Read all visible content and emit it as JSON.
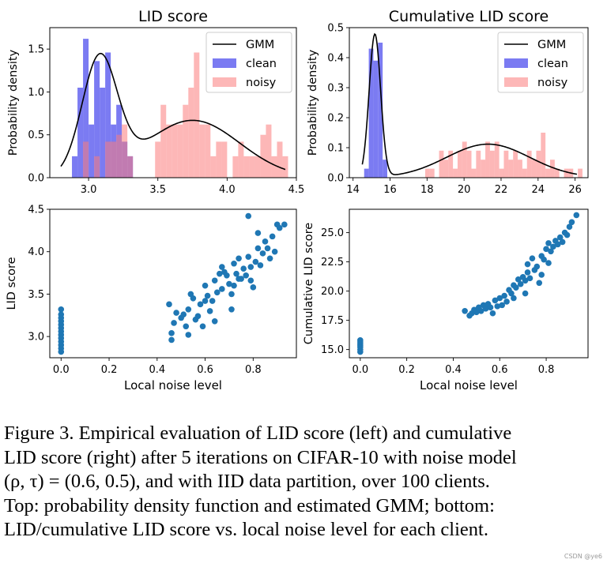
{
  "chart_data": [
    {
      "type": "histogram",
      "id": "lid-hist",
      "title": "LID score",
      "xlabel": "",
      "ylabel": "Probability density",
      "xlim": [
        2.72,
        4.5
      ],
      "ylim": [
        0,
        1.75
      ],
      "xticks": [
        3.0,
        3.5,
        4.0,
        4.5
      ],
      "xtick_labels": [
        "3.0",
        "3.5",
        "4.0",
        "4.5"
      ],
      "yticks": [
        0.0,
        0.5,
        1.0,
        1.5
      ],
      "ytick_labels": [
        "0.0",
        "0.5",
        "1.0",
        "1.5"
      ],
      "grid": false,
      "legend_position": "top-right",
      "legend": [
        "GMM",
        "clean",
        "noisy"
      ],
      "series": [
        {
          "name": "clean",
          "color": "#7b7bf2",
          "bins": [
            [
              2.88,
              2.92,
              0.25
            ],
            [
              2.92,
              2.96,
              1.05
            ],
            [
              2.96,
              3.0,
              1.62
            ],
            [
              3.0,
              3.04,
              0.62
            ],
            [
              3.04,
              3.08,
              1.36
            ],
            [
              3.08,
              3.12,
              1.05
            ],
            [
              3.12,
              3.16,
              1.46
            ],
            [
              3.16,
              3.2,
              0.62
            ],
            [
              3.2,
              3.24,
              0.85
            ],
            [
              3.24,
              3.28,
              0.42
            ],
            [
              3.28,
              3.32,
              0.25
            ]
          ]
        },
        {
          "name": "noisy",
          "color": "#fb7b7b",
          "bins": [
            [
              2.83,
              2.87,
              0.0
            ],
            [
              2.96,
              3.0,
              0.42
            ],
            [
              3.04,
              3.08,
              0.25
            ],
            [
              3.12,
              3.16,
              0.42
            ],
            [
              3.16,
              3.2,
              0.42
            ],
            [
              3.2,
              3.24,
              0.5
            ],
            [
              3.24,
              3.28,
              0.62
            ],
            [
              3.28,
              3.32,
              0.25
            ],
            [
              3.48,
              3.52,
              0.42
            ],
            [
              3.52,
              3.56,
              0.85
            ],
            [
              3.56,
              3.6,
              0.62
            ],
            [
              3.6,
              3.64,
              0.62
            ],
            [
              3.64,
              3.68,
              0.62
            ],
            [
              3.68,
              3.72,
              0.85
            ],
            [
              3.72,
              3.76,
              1.05
            ],
            [
              3.76,
              3.8,
              1.46
            ],
            [
              3.8,
              3.84,
              0.62
            ],
            [
              3.84,
              3.88,
              0.62
            ],
            [
              3.88,
              3.92,
              0.25
            ],
            [
              3.92,
              3.96,
              0.42
            ],
            [
              3.96,
              4.0,
              0.42
            ],
            [
              4.04,
              4.08,
              0.25
            ],
            [
              4.08,
              4.12,
              0.42
            ],
            [
              4.12,
              4.16,
              0.25
            ],
            [
              4.16,
              4.2,
              0.25
            ],
            [
              4.2,
              4.24,
              0.25
            ],
            [
              4.24,
              4.28,
              0.5
            ],
            [
              4.28,
              4.32,
              0.62
            ],
            [
              4.32,
              4.36,
              0.25
            ],
            [
              4.36,
              4.4,
              0.42
            ],
            [
              4.4,
              4.44,
              0.25
            ]
          ]
        },
        {
          "name": "GMM",
          "color": "#000000",
          "gmm": [
            {
              "w": 0.43,
              "mu": 3.08,
              "sigma": 0.127
            },
            {
              "w": 0.57,
              "mu": 3.75,
              "sigma": 0.34
            }
          ],
          "range": [
            2.8,
            4.42
          ]
        }
      ]
    },
    {
      "type": "histogram",
      "id": "cum-hist",
      "title": "Cumulative LID score",
      "xlabel": "",
      "ylabel": "Probability density",
      "xlim": [
        13.8,
        26.7
      ],
      "ylim": [
        0,
        0.5
      ],
      "xticks": [
        14,
        16,
        18,
        20,
        22,
        24,
        26
      ],
      "xtick_labels": [
        "14",
        "16",
        "18",
        "20",
        "22",
        "24",
        "26"
      ],
      "yticks": [
        0.0,
        0.1,
        0.2,
        0.3,
        0.4,
        0.5
      ],
      "ytick_labels": [
        "0.0",
        "0.1",
        "0.2",
        "0.3",
        "0.4",
        "0.5"
      ],
      "grid": false,
      "legend_position": "top-right",
      "legend": [
        "GMM",
        "clean",
        "noisy"
      ],
      "series": [
        {
          "name": "clean",
          "color": "#7b7bf2",
          "bins": [
            [
              14.6,
              14.85,
              0.03
            ],
            [
              14.85,
              15.1,
              0.43
            ],
            [
              15.1,
              15.35,
              0.39
            ],
            [
              15.35,
              15.6,
              0.45
            ],
            [
              15.6,
              15.85,
              0.06
            ]
          ]
        },
        {
          "name": "noisy",
          "color": "#fb7b7b",
          "bins": [
            [
              17.9,
              18.15,
              0.03
            ],
            [
              18.15,
              18.4,
              0.03
            ],
            [
              18.65,
              18.9,
              0.09
            ],
            [
              18.9,
              19.15,
              0.06
            ],
            [
              19.15,
              19.4,
              0.09
            ],
            [
              19.4,
              19.65,
              0.03
            ],
            [
              19.65,
              19.9,
              0.09
            ],
            [
              19.9,
              20.15,
              0.12
            ],
            [
              20.15,
              20.4,
              0.09
            ],
            [
              20.4,
              20.65,
              0.03
            ],
            [
              20.65,
              20.9,
              0.09
            ],
            [
              20.9,
              21.15,
              0.06
            ],
            [
              21.15,
              21.4,
              0.12
            ],
            [
              21.4,
              21.65,
              0.09
            ],
            [
              21.65,
              21.9,
              0.12
            ],
            [
              21.9,
              22.15,
              0.03
            ],
            [
              22.15,
              22.4,
              0.09
            ],
            [
              22.4,
              22.65,
              0.06
            ],
            [
              22.65,
              22.9,
              0.09
            ],
            [
              22.9,
              23.15,
              0.06
            ],
            [
              23.15,
              23.4,
              0.03
            ],
            [
              23.4,
              23.65,
              0.09
            ],
            [
              23.65,
              23.9,
              0.06
            ],
            [
              23.9,
              24.15,
              0.09
            ],
            [
              24.15,
              24.4,
              0.15
            ],
            [
              24.4,
              24.65,
              0.03
            ],
            [
              24.65,
              24.9,
              0.06
            ],
            [
              24.9,
              25.15,
              0.03
            ],
            [
              25.4,
              25.65,
              0.03
            ],
            [
              25.65,
              25.9,
              0.03
            ],
            [
              26.15,
              26.4,
              0.03
            ]
          ]
        },
        {
          "name": "GMM",
          "color": "#000000",
          "gmm": [
            {
              "w": 0.37,
              "mu": 15.18,
              "sigma": 0.31
            },
            {
              "w": 0.63,
              "mu": 21.3,
              "sigma": 2.25
            }
          ],
          "range": [
            14.5,
            26.1
          ]
        }
      ]
    },
    {
      "type": "scatter",
      "id": "lid-scatter",
      "xlabel": "Local noise level",
      "ylabel": "LID score",
      "xlim": [
        -0.047,
        0.98
      ],
      "ylim": [
        2.75,
        4.5
      ],
      "xticks": [
        0.0,
        0.2,
        0.4,
        0.6,
        0.8
      ],
      "xtick_labels": [
        "0.0",
        "0.2",
        "0.4",
        "0.6",
        "0.8"
      ],
      "yticks": [
        3.0,
        3.5,
        4.0,
        4.5
      ],
      "ytick_labels": [
        "3.0",
        "3.5",
        "4.0",
        "4.5"
      ],
      "grid": false,
      "color": "#1f77b4",
      "points": [
        [
          0,
          2.82
        ],
        [
          0,
          2.86
        ],
        [
          0,
          2.9
        ],
        [
          0,
          2.94
        ],
        [
          0,
          2.98
        ],
        [
          0,
          3.02
        ],
        [
          0,
          3.06
        ],
        [
          0,
          3.1
        ],
        [
          0,
          3.14
        ],
        [
          0,
          3.18
        ],
        [
          0,
          3.22
        ],
        [
          0,
          3.26
        ],
        [
          0,
          3.32
        ],
        [
          0.45,
          3.38
        ],
        [
          0.46,
          3.04
        ],
        [
          0.46,
          2.96
        ],
        [
          0.47,
          3.16
        ],
        [
          0.48,
          3.28
        ],
        [
          0.5,
          3.22
        ],
        [
          0.51,
          3.26
        ],
        [
          0.52,
          3.12
        ],
        [
          0.53,
          3.32
        ],
        [
          0.53,
          3.02
        ],
        [
          0.54,
          3.5
        ],
        [
          0.55,
          3.45
        ],
        [
          0.56,
          3.2
        ],
        [
          0.57,
          3.24
        ],
        [
          0.58,
          3.38
        ],
        [
          0.59,
          3.12
        ],
        [
          0.6,
          3.42
        ],
        [
          0.6,
          3.6
        ],
        [
          0.61,
          3.48
        ],
        [
          0.62,
          3.3
        ],
        [
          0.63,
          3.42
        ],
        [
          0.64,
          3.18
        ],
        [
          0.64,
          3.66
        ],
        [
          0.65,
          3.52
        ],
        [
          0.66,
          3.74
        ],
        [
          0.67,
          3.56
        ],
        [
          0.67,
          3.82
        ],
        [
          0.68,
          3.76
        ],
        [
          0.69,
          3.72
        ],
        [
          0.7,
          3.62
        ],
        [
          0.71,
          3.5
        ],
        [
          0.71,
          3.32
        ],
        [
          0.72,
          3.6
        ],
        [
          0.72,
          3.86
        ],
        [
          0.73,
          3.74
        ],
        [
          0.74,
          3.68
        ],
        [
          0.74,
          3.92
        ],
        [
          0.75,
          3.68
        ],
        [
          0.76,
          3.8
        ],
        [
          0.77,
          3.72
        ],
        [
          0.78,
          3.94
        ],
        [
          0.78,
          4.42
        ],
        [
          0.79,
          3.66
        ],
        [
          0.79,
          3.82
        ],
        [
          0.8,
          3.58
        ],
        [
          0.81,
          3.88
        ],
        [
          0.82,
          4.04
        ],
        [
          0.82,
          4.22
        ],
        [
          0.83,
          3.84
        ],
        [
          0.84,
          3.98
        ],
        [
          0.85,
          4.12
        ],
        [
          0.86,
          4.04
        ],
        [
          0.87,
          3.92
        ],
        [
          0.88,
          4.18
        ],
        [
          0.89,
          4.0
        ],
        [
          0.9,
          4.32
        ],
        [
          0.91,
          4.28
        ],
        [
          0.93,
          4.32
        ]
      ]
    },
    {
      "type": "scatter",
      "id": "cum-scatter",
      "xlabel": "Local noise level",
      "ylabel": "Cumulative LID score",
      "xlim": [
        -0.047,
        0.98
      ],
      "ylim": [
        14.3,
        27.0
      ],
      "xticks": [
        0.0,
        0.2,
        0.4,
        0.6,
        0.8
      ],
      "xtick_labels": [
        "0.0",
        "0.2",
        "0.4",
        "0.6",
        "0.8"
      ],
      "yticks": [
        15.0,
        17.5,
        20.0,
        22.5,
        25.0
      ],
      "ytick_labels": [
        "15.0",
        "17.5",
        "20.0",
        "22.5",
        "25.0"
      ],
      "grid": false,
      "color": "#1f77b4",
      "points": [
        [
          0,
          14.8
        ],
        [
          0,
          15.0
        ],
        [
          0,
          15.2
        ],
        [
          0,
          15.35
        ],
        [
          0,
          15.5
        ],
        [
          0,
          15.65
        ],
        [
          0,
          15.8
        ],
        [
          0.45,
          18.3
        ],
        [
          0.47,
          17.9
        ],
        [
          0.48,
          18.1
        ],
        [
          0.49,
          18.4
        ],
        [
          0.5,
          18.2
        ],
        [
          0.51,
          18.6
        ],
        [
          0.52,
          18.3
        ],
        [
          0.53,
          18.8
        ],
        [
          0.54,
          18.5
        ],
        [
          0.55,
          18.9
        ],
        [
          0.56,
          18.6
        ],
        [
          0.57,
          18.1
        ],
        [
          0.58,
          19.2
        ],
        [
          0.59,
          18.7
        ],
        [
          0.6,
          19.4
        ],
        [
          0.61,
          18.8
        ],
        [
          0.62,
          19.6
        ],
        [
          0.63,
          19.1
        ],
        [
          0.64,
          20.1
        ],
        [
          0.65,
          19.8
        ],
        [
          0.66,
          20.5
        ],
        [
          0.66,
          19.4
        ],
        [
          0.67,
          20.3
        ],
        [
          0.68,
          21.0
        ],
        [
          0.69,
          20.6
        ],
        [
          0.7,
          21.2
        ],
        [
          0.71,
          19.8
        ],
        [
          0.71,
          20.9
        ],
        [
          0.72,
          21.6
        ],
        [
          0.72,
          22.3
        ],
        [
          0.73,
          21.1
        ],
        [
          0.74,
          22.8
        ],
        [
          0.75,
          21.8
        ],
        [
          0.76,
          22.1
        ],
        [
          0.77,
          20.7
        ],
        [
          0.78,
          21.4
        ],
        [
          0.78,
          23.0
        ],
        [
          0.79,
          22.7
        ],
        [
          0.8,
          23.6
        ],
        [
          0.81,
          22.4
        ],
        [
          0.81,
          24.1
        ],
        [
          0.82,
          23.4
        ],
        [
          0.83,
          23.8
        ],
        [
          0.84,
          24.3
        ],
        [
          0.85,
          24.0
        ],
        [
          0.86,
          24.6
        ],
        [
          0.87,
          24.2
        ],
        [
          0.88,
          25.0
        ],
        [
          0.89,
          24.8
        ],
        [
          0.9,
          25.5
        ],
        [
          0.91,
          25.9
        ],
        [
          0.93,
          26.5
        ]
      ]
    }
  ],
  "caption": {
    "lines": [
      "Figure 3. Empirical evaluation of LID score (left) and cumulative",
      "LID score (right) after 5 iterations on CIFAR-10 with noise model",
      "(ρ, τ) = (0.6, 0.5), and with IID data partition, over 100 clients.",
      "Top: probability density function and estimated GMM; bottom:",
      "LID/cumulative LID score vs. local noise level for each client."
    ]
  },
  "watermark": "CSDN @ye6"
}
